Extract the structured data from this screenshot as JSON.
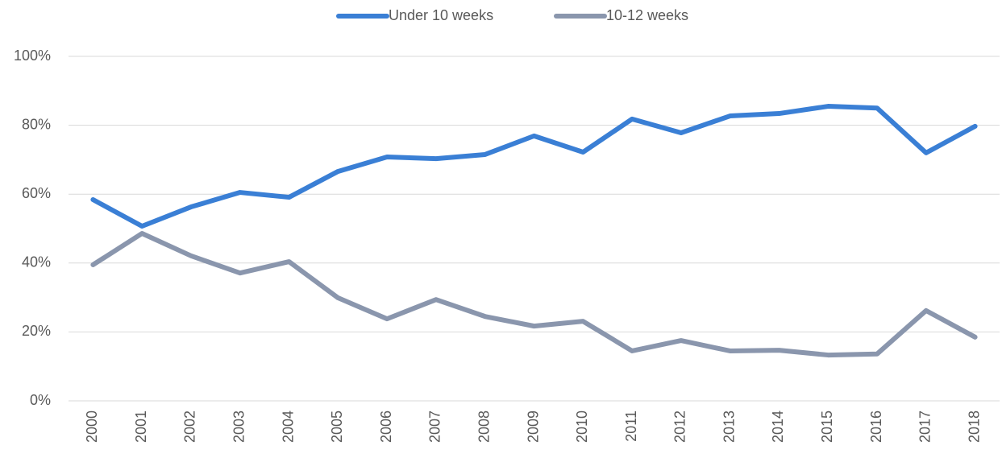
{
  "chart_data": {
    "type": "line",
    "categories": [
      "2000",
      "2001",
      "2002",
      "2003",
      "2004",
      "2005",
      "2006",
      "2007",
      "2008",
      "2009",
      "2010",
      "2011",
      "2012",
      "2013",
      "2014",
      "2015",
      "2016",
      "2017",
      "2018"
    ],
    "series": [
      {
        "name": "Under 10 weeks",
        "color": "#3a7fd5",
        "values": [
          58.4,
          50.7,
          56.3,
          60.5,
          59.1,
          66.6,
          70.8,
          70.3,
          71.5,
          76.9,
          72.2,
          81.8,
          77.8,
          82.7,
          83.4,
          85.5,
          85.0,
          72.0,
          79.7
        ]
      },
      {
        "name": "10-12 weeks",
        "color": "#8a96ad",
        "values": [
          39.5,
          48.6,
          42.1,
          37.1,
          40.4,
          29.9,
          23.8,
          29.4,
          24.5,
          21.7,
          23.1,
          14.5,
          17.5,
          14.5,
          14.7,
          13.3,
          13.6,
          26.2,
          18.5
        ]
      }
    ],
    "ylim": [
      0,
      100
    ],
    "yticks": [
      {
        "value": 0,
        "label": "0%"
      },
      {
        "value": 20,
        "label": "20%"
      },
      {
        "value": 40,
        "label": "40%"
      },
      {
        "value": 60,
        "label": "60%"
      },
      {
        "value": 80,
        "label": "80%"
      },
      {
        "value": 100,
        "label": "100%"
      }
    ],
    "grid": true,
    "legend": "top"
  }
}
